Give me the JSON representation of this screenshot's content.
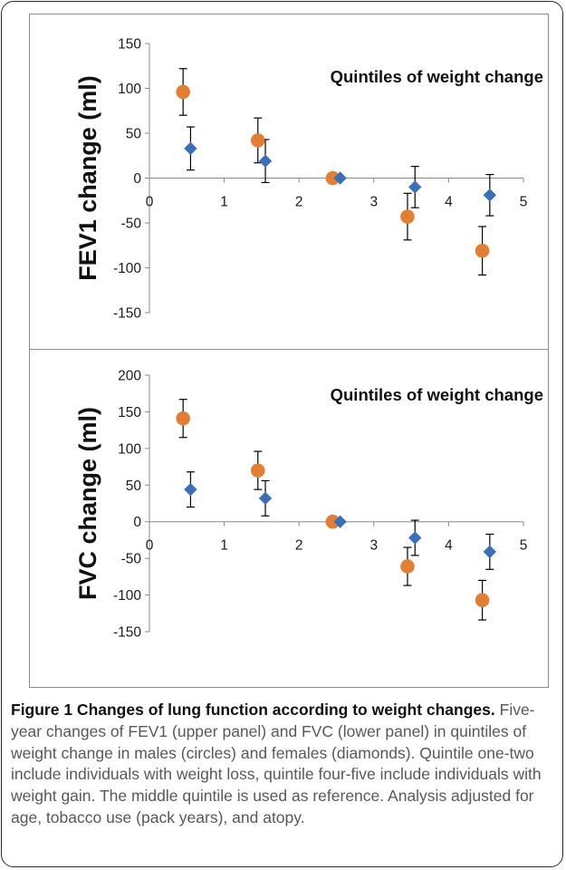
{
  "chart_data": [
    {
      "type": "scatter",
      "ylabel": "FEV1 change (ml)",
      "annotation": "Quintiles of weight change",
      "xlim": [
        0,
        5
      ],
      "ylim": [
        -150,
        150
      ],
      "x_ticks": [
        "0",
        "1",
        "2",
        "3",
        "4",
        "5"
      ],
      "y_ticks": [
        "150",
        "100",
        "50",
        "0",
        "-50",
        "-100",
        "-150"
      ],
      "error_bars": true,
      "grid": false,
      "series": [
        {
          "marker": "circle",
          "color": "#E07F35",
          "points": [
            {
              "x": 0.45,
              "y": 96,
              "err": 26
            },
            {
              "x": 1.45,
              "y": 42,
              "err": 25
            },
            {
              "x": 2.45,
              "y": 0,
              "err": 0
            },
            {
              "x": 3.45,
              "y": -43,
              "err": 26
            },
            {
              "x": 4.45,
              "y": -81,
              "err": 27
            }
          ]
        },
        {
          "marker": "diamond",
          "color": "#3D6FB6",
          "points": [
            {
              "x": 0.55,
              "y": 33,
              "err": 24
            },
            {
              "x": 1.55,
              "y": 19,
              "err": 24
            },
            {
              "x": 2.55,
              "y": 0,
              "err": 0
            },
            {
              "x": 3.55,
              "y": -10,
              "err": 23
            },
            {
              "x": 4.55,
              "y": -19,
              "err": 23
            }
          ]
        }
      ]
    },
    {
      "type": "scatter",
      "ylabel": "FVC change (ml)",
      "annotation": "Quintiles of weight change",
      "xlim": [
        0,
        5
      ],
      "ylim": [
        -150,
        200
      ],
      "x_ticks": [
        "0",
        "1",
        "2",
        "3",
        "4",
        "5"
      ],
      "y_ticks": [
        "200",
        "150",
        "100",
        "50",
        "0",
        "-50",
        "-100",
        "-150"
      ],
      "error_bars": true,
      "grid": false,
      "series": [
        {
          "marker": "circle",
          "color": "#E07F35",
          "points": [
            {
              "x": 0.45,
              "y": 141,
              "err": 26
            },
            {
              "x": 1.45,
              "y": 70,
              "err": 26
            },
            {
              "x": 2.45,
              "y": 0,
              "err": 0
            },
            {
              "x": 3.45,
              "y": -61,
              "err": 26
            },
            {
              "x": 4.45,
              "y": -107,
              "err": 27
            }
          ]
        },
        {
          "marker": "diamond",
          "color": "#3D6FB6",
          "points": [
            {
              "x": 0.55,
              "y": 44,
              "err": 24
            },
            {
              "x": 1.55,
              "y": 32,
              "err": 24
            },
            {
              "x": 2.55,
              "y": 0,
              "err": 0
            },
            {
              "x": 3.55,
              "y": -22,
              "err": 24
            },
            {
              "x": 4.55,
              "y": -41,
              "err": 24
            }
          ]
        }
      ]
    }
  ],
  "caption": {
    "title": "Figure 1 Changes of lung function according to weight changes.",
    "body": "Five-year changes of FEV1 (upper panel) and FVC (lower panel) in quintiles of weight change in males (circles) and females (diamonds). Quintile one-two include individuals with weight loss, quintile four-five include individuals with weight gain. The middle quintile is used as reference. Analysis adjusted for age, tobacco use (pack years), and atopy."
  }
}
